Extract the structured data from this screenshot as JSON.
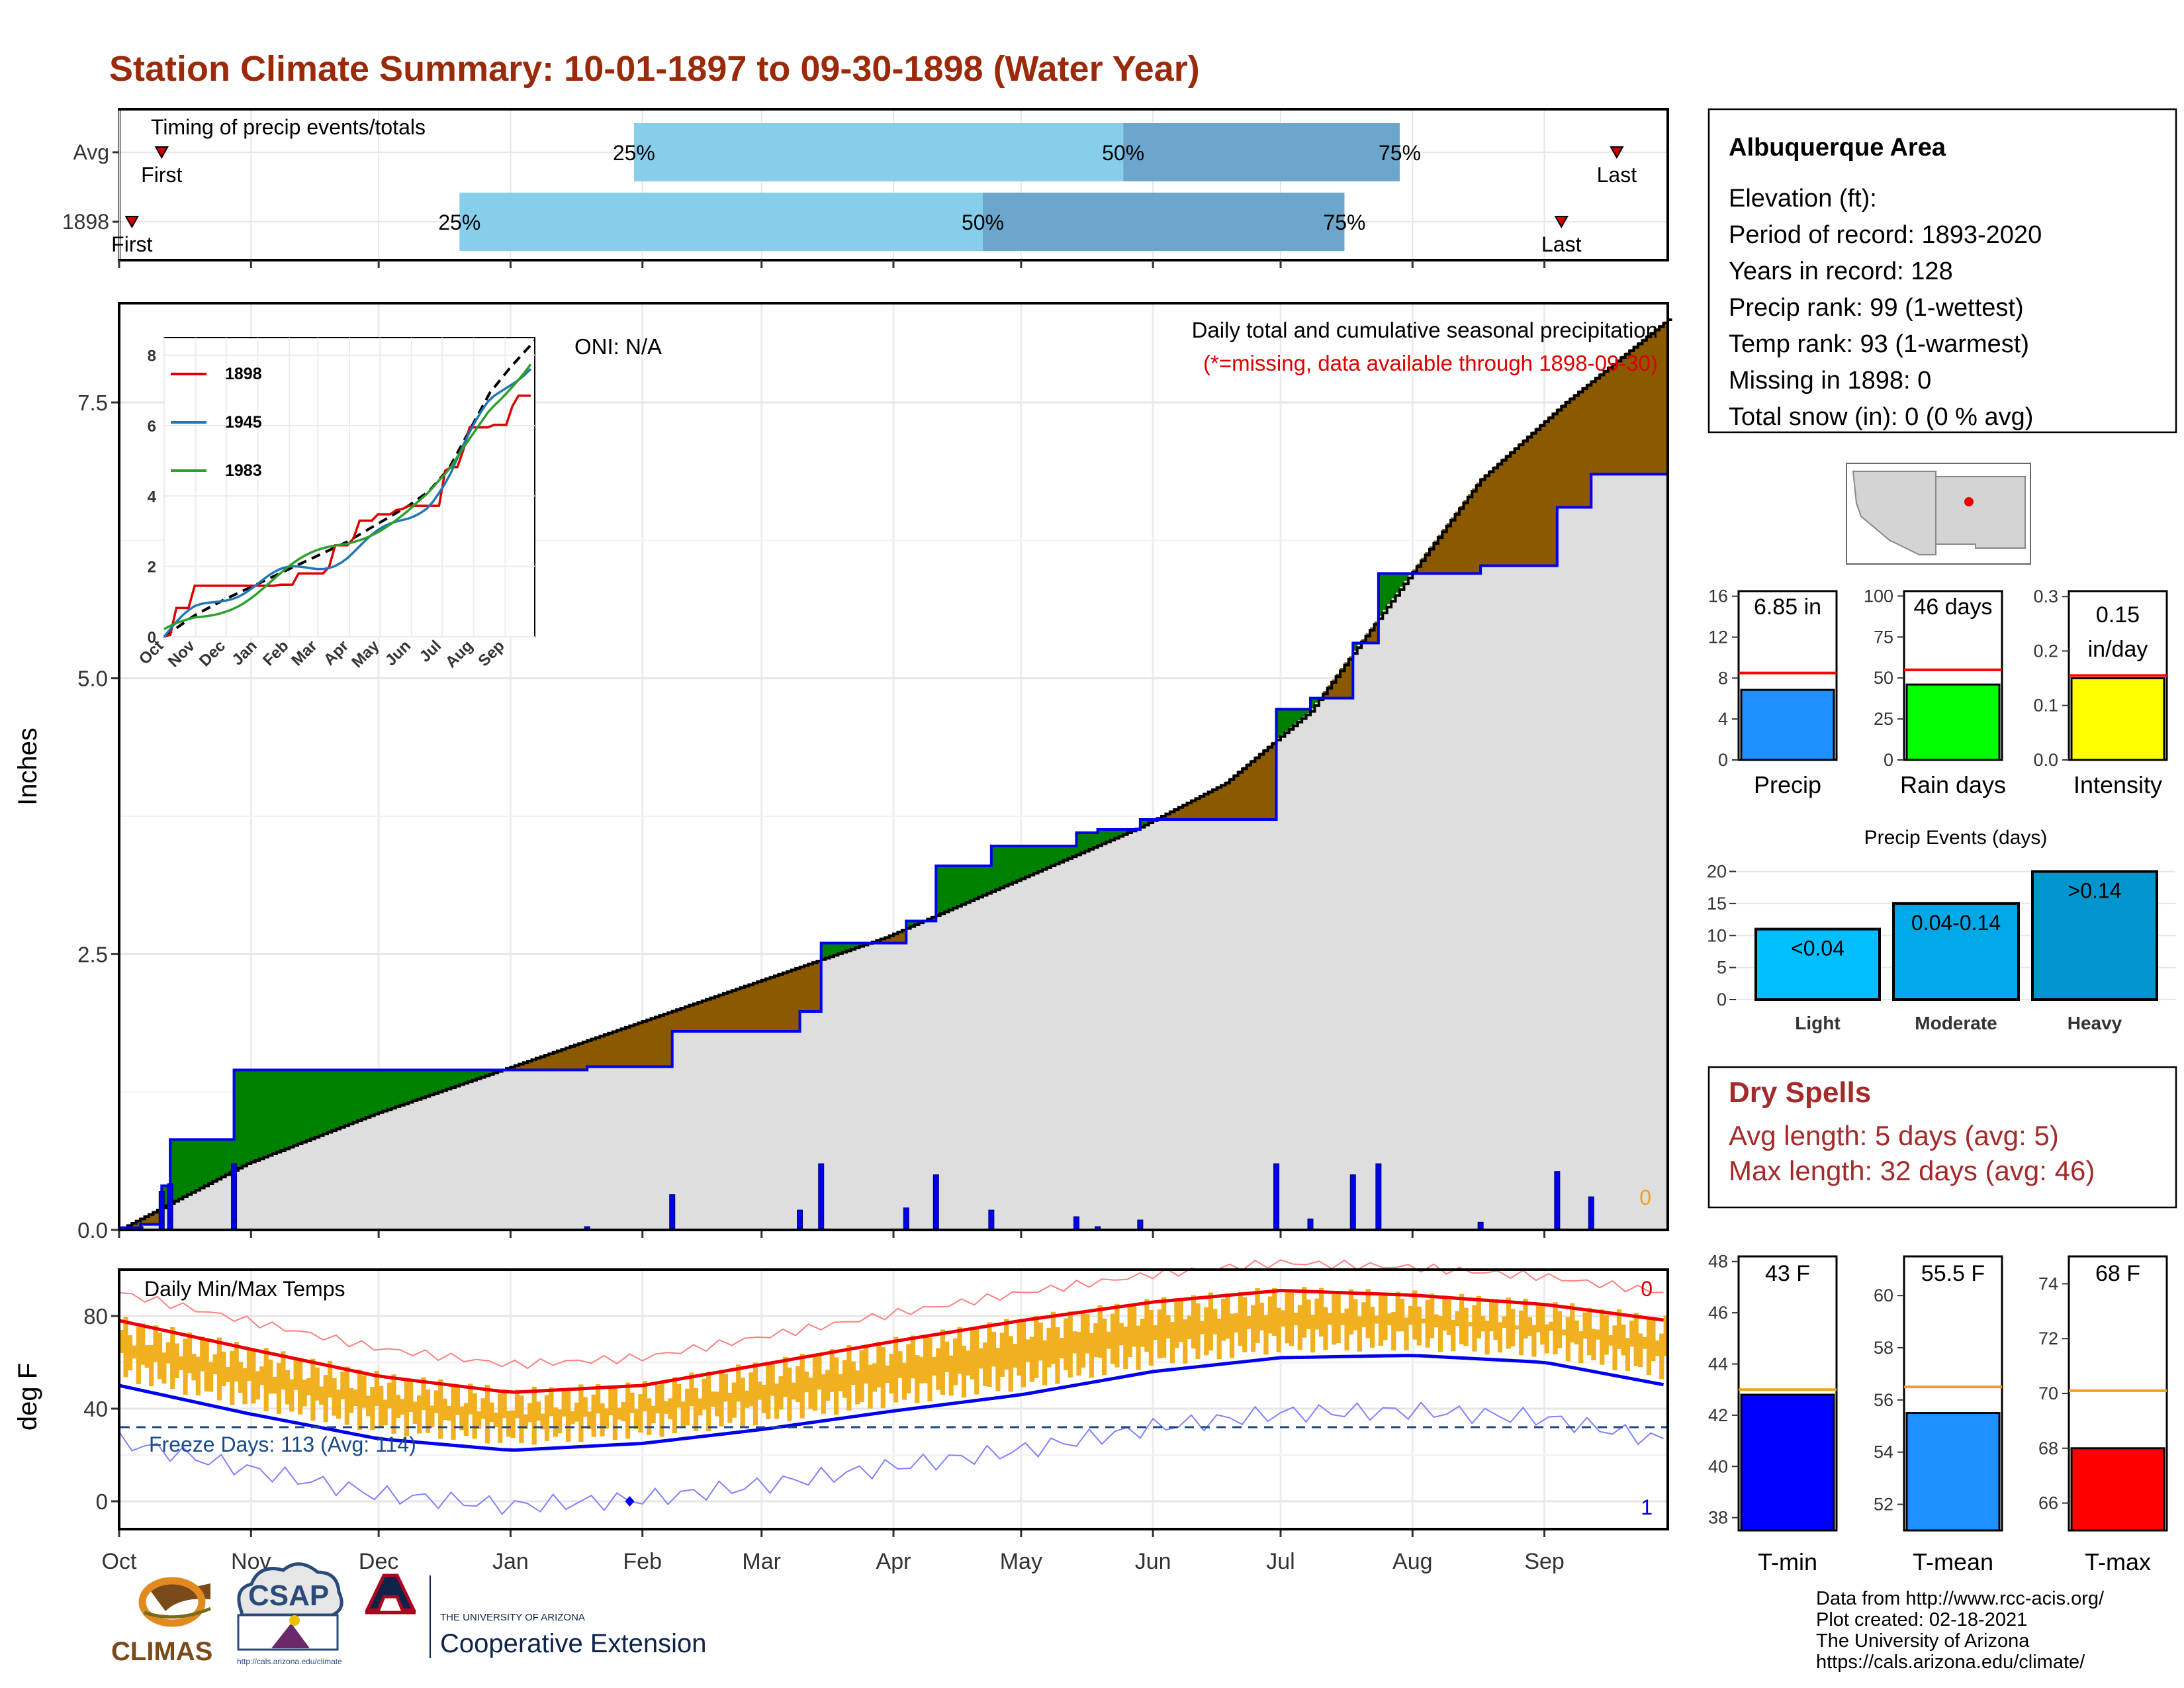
{
  "title": "Station Climate Summary: 10-01-1897 to 09-30-1898 (Water Year)",
  "timing": {
    "heading": "Timing of precip events/totals",
    "rows": [
      {
        "label": "Avg",
        "first_label": "First",
        "last_label": "Last",
        "first_day": 10,
        "last_day": 352,
        "p25_day": 121,
        "p50_day": 236,
        "p75_day": 301
      },
      {
        "label": "1898",
        "first_label": "First",
        "last_label": "Last",
        "first_day": 3,
        "last_day": 339,
        "p25_day": 80,
        "p50_day": 203,
        "p75_day": 288
      }
    ],
    "pct_labels": [
      "25%",
      "50%",
      "75%"
    ],
    "colors": {
      "light": "#87ceeb",
      "dark": "#6ca6cd",
      "marker": "#cc0000"
    }
  },
  "months": [
    "Oct",
    "Nov",
    "Dec",
    "Jan",
    "Feb",
    "Mar",
    "Apr",
    "May",
    "Jun",
    "Jul",
    "Aug",
    "Sep"
  ],
  "precip_panel": {
    "ylabel": "Inches",
    "y_ticks": [
      "0.0",
      "2.5",
      "5.0",
      "7.5"
    ],
    "heading": "Daily total and cumulative seasonal precipitation",
    "note": "(*=missing, data available through 1898-09-30)",
    "oni": "ONI: N/A",
    "missing_count": "0"
  },
  "inset": {
    "legend": [
      "1898",
      "1945",
      "1983"
    ],
    "colors": [
      "#dd0000",
      "#1f77b4",
      "#2ca02c"
    ],
    "y_ticks": [
      "0",
      "2",
      "4",
      "6",
      "8"
    ],
    "months": [
      "Oct",
      "Nov",
      "Dec",
      "Jan",
      "Feb",
      "Mar",
      "Apr",
      "May",
      "Jun",
      "Jul",
      "Aug",
      "Sep"
    ]
  },
  "temp_panel": {
    "ylabel": "deg F",
    "heading": "Daily Min/Max Temps",
    "freeze_days": "Freeze Days: 113 (Avg: 114)",
    "y_ticks": [
      "0",
      "40",
      "80"
    ],
    "count_top": "0",
    "count_bottom": "1"
  },
  "station": {
    "name": "Albuquerque Area",
    "lines": [
      "Elevation (ft):",
      "Period of record: 1893-2020",
      "Years in record: 128",
      "Precip rank: 99 (1-wettest)",
      "Temp rank: 93 (1-warmest)",
      "Missing in 1898: 0",
      "Total snow (in): 0 (0 % avg)"
    ]
  },
  "mini_bars": [
    {
      "label": "Precip",
      "value_text": "6.85 in",
      "ticks": [
        "0",
        "4",
        "8",
        "12",
        "16"
      ],
      "color": "#1e90ff",
      "value": 6.85,
      "avg": 8.5,
      "ymax": 16.5
    },
    {
      "label": "Rain days",
      "value_text": "46 days",
      "ticks": [
        "0",
        "25",
        "50",
        "75",
        "100"
      ],
      "color": "#00ff00",
      "value": 46,
      "avg": 55,
      "ymax": 103
    },
    {
      "label": "Intensity",
      "value_text": "0.15",
      "value_text2": "in/day",
      "ticks": [
        "0.0",
        "0.1",
        "0.2",
        "0.3"
      ],
      "color": "#ffff00",
      "value": 0.15,
      "avg": 0.155,
      "ymax": 0.31
    }
  ],
  "precip_events": {
    "title": "Precip Events (days)",
    "categories": [
      "Light",
      "Moderate",
      "Heavy"
    ],
    "values": [
      11,
      15,
      20
    ],
    "labels": [
      "<0.04",
      "0.04-0.14",
      ">0.14"
    ],
    "ticks": [
      "0",
      "5",
      "10",
      "15",
      "20"
    ],
    "colors": [
      "#00bfff",
      "#00a8e8",
      "#0095cc"
    ]
  },
  "dry_spells": {
    "title": "Dry Spells",
    "avg_length": "Avg length: 5 days (avg: 5)",
    "max_length": "Max length: 32 days (avg: 46)"
  },
  "temp_bars": [
    {
      "label": "T-min",
      "value_text": "43 F",
      "ticks": [
        "38",
        "40",
        "42",
        "44",
        "46",
        "48"
      ],
      "color": "#0000ff",
      "value": 42.8,
      "avg": 43.0,
      "ymin": 37.5,
      "ymax": 48.2
    },
    {
      "label": "T-mean",
      "value_text": "55.5 F",
      "ticks": [
        "52",
        "54",
        "56",
        "58",
        "60"
      ],
      "color": "#1e90ff",
      "value": 55.5,
      "avg": 56.5,
      "ymin": 51.0,
      "ymax": 61.5
    },
    {
      "label": "T-max",
      "value_text": "68 F",
      "ticks": [
        "66",
        "68",
        "70",
        "72",
        "74"
      ],
      "color": "#ff0000",
      "value": 68.0,
      "avg": 70.1,
      "ymin": 65.0,
      "ymax": 75.0
    }
  ],
  "footer": {
    "lines": [
      "Data from http://www.rcc-acis.org/",
      "Plot created: 02-18-2021",
      "The University of Arizona",
      "https://cals.arizona.edu/climate/"
    ]
  },
  "logos": {
    "climas": "CLIMAS",
    "csap": "CSAP",
    "csap_url": "http://cals.arizona.edu/climate",
    "ua_small": "THE UNIVERSITY OF ARIZONA",
    "ua_big": "Cooperative Extension"
  },
  "chart_data": [
    {
      "type": "line",
      "title": "Daily total and cumulative seasonal precipitation",
      "ylabel": "Inches",
      "ylim": [
        0,
        8.4
      ],
      "x_unit": "day of water year (0 = Oct 1)",
      "series": [
        {
          "name": "1898",
          "x": [
            0,
            5,
            10,
            12,
            22,
            27,
            60,
            70,
            110,
            130,
            160,
            165,
            185,
            192,
            205,
            225,
            230,
            240,
            260,
            272,
            280,
            290,
            296,
            320,
            338,
            346,
            364
          ],
          "values": [
            0.02,
            0.05,
            0.4,
            0.82,
            0.82,
            1.45,
            1.45,
            1.45,
            1.48,
            1.8,
            1.98,
            2.6,
            2.8,
            3.3,
            3.48,
            3.6,
            3.63,
            3.72,
            3.72,
            4.72,
            4.82,
            5.32,
            5.95,
            6.02,
            6.55,
            6.85,
            6.85
          ]
        },
        {
          "name": "",
          "x": [
            0,
            30,
            60,
            90,
            120,
            150,
            180,
            210,
            240,
            260,
            280,
            300,
            320,
            340,
            364
          ],
          "values": [
            0.0,
            0.6,
            1.05,
            1.45,
            1.85,
            2.25,
            2.65,
            3.15,
            3.65,
            4.05,
            4.7,
            5.75,
            6.8,
            7.5,
            8.25
          ]
        }
      ]
    },
    {
      "type": "line",
      "title": "Daily Min/Max Temps",
      "ylabel": "deg F",
      "ylim": [
        -12,
        100
      ],
      "x_unit": "day of water year (0 = Oct 1)",
      "series": [
        {
          "name": "",
          "x": [
            0,
            30,
            61,
            92,
            123,
            151,
            182,
            212,
            243,
            273,
            304,
            335,
            364
          ],
          "values": [
            78,
            66,
            54,
            47,
            50,
            59,
            69,
            78,
            86,
            91,
            89,
            85,
            78
          ]
        },
        {
          "name": "",
          "x": [
            0,
            30,
            61,
            92,
            123,
            151,
            182,
            212,
            243,
            273,
            304,
            335,
            364
          ],
          "values": [
            50,
            38,
            27,
            22,
            25,
            31,
            39,
            46,
            56,
            62,
            63,
            60,
            50
          ]
        }
      ]
    }
  ]
}
